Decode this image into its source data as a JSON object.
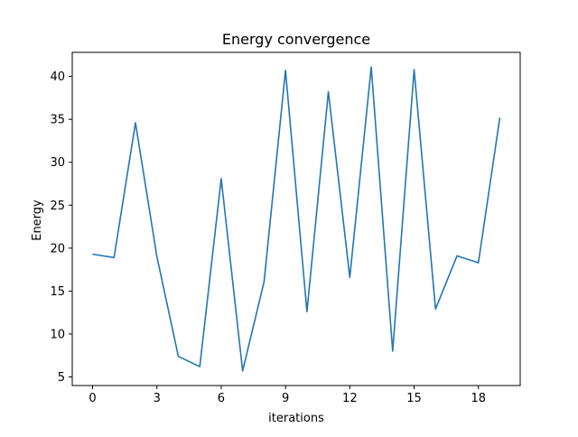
{
  "chart_data": {
    "type": "line",
    "title": "Energy convergence",
    "xlabel": "iterations",
    "ylabel": "Energy",
    "x": [
      0,
      1,
      2,
      3,
      4,
      5,
      6,
      7,
      8,
      9,
      10,
      11,
      12,
      13,
      14,
      15,
      16,
      17,
      18,
      19
    ],
    "series": [
      {
        "values": [
          19.3,
          18.9,
          34.6,
          19.0,
          7.4,
          6.2,
          28.1,
          5.7,
          16.1,
          40.7,
          12.6,
          38.2,
          16.6,
          41.1,
          8.0,
          40.8,
          12.9,
          19.1,
          18.3,
          35.2
        ],
        "color": "#1f77b4"
      }
    ],
    "xticks": [
      "0",
      "3",
      "6",
      "9",
      "12",
      "15",
      "18"
    ],
    "yticks": [
      "5",
      "10",
      "15",
      "20",
      "25",
      "30",
      "35",
      "40"
    ],
    "xlim": [
      -0.95,
      19.95
    ],
    "ylim": [
      4.0,
      42.8
    ],
    "grid": false,
    "legend": "none"
  }
}
